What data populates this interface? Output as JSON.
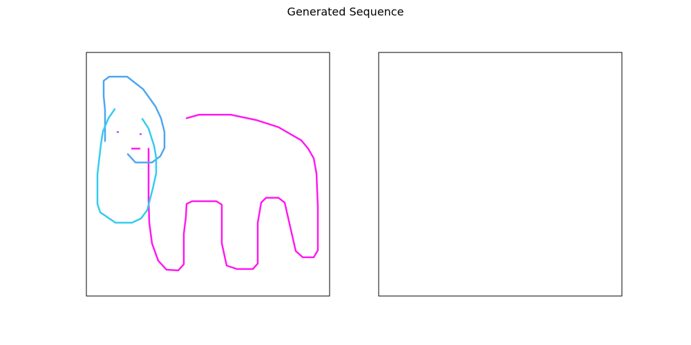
{
  "title": "Generated Sequence",
  "chart_data": [
    {
      "type": "line",
      "xlim": [
        0,
        352
      ],
      "ylim": [
        0,
        352
      ],
      "series": [
        {
          "color": "#ff19f0",
          "x": [
            145,
            163,
            209,
            247,
            278,
            311,
            321,
            329,
            333,
            335,
            335,
            329,
            313,
            303,
            287,
            278,
            260,
            253,
            248,
            248,
            241,
            218,
            203,
            196,
            196,
            188,
            153,
            145,
            144,
            141,
            141,
            133,
            116,
            104,
            95,
            91,
            90,
            90
          ],
          "values": [
            257,
            262,
            262,
            254,
            244,
            225,
            213,
            199,
            177,
            129,
            66,
            56,
            56,
            65,
            135,
            142,
            142,
            135,
            106,
            47,
            39,
            39,
            44,
            76,
            132,
            137,
            137,
            133,
            114,
            90,
            46,
            37,
            38,
            51,
            76,
            106,
            140,
            213
          ]
        },
        {
          "color": "#ff19f0",
          "x": [
            66,
            77
          ],
          "values": [
            213,
            213
          ]
        },
        {
          "color": "#b44cff",
          "x": [
            45,
            46
          ],
          "values": [
            237,
            237
          ]
        },
        {
          "color": "#b44cff",
          "x": [
            78,
            79
          ],
          "values": [
            234,
            234
          ]
        },
        {
          "color": "#4da6f0",
          "x": [
            27,
            27,
            25,
            25,
            33,
            59,
            82,
            100,
            108,
            113,
            113,
            107,
            95,
            71,
            60
          ],
          "values": [
            224,
            269,
            289,
            311,
            317,
            317,
            299,
            274,
            257,
            237,
            214,
            202,
            193,
            193,
            205
          ]
        },
        {
          "color": "#33ccee",
          "x": [
            41,
            32,
            24,
            21,
            16,
            16,
            20,
            42,
            66,
            79,
            88,
            96,
            101,
            101,
            98,
            90,
            81
          ],
          "values": [
            270,
            257,
            238,
            219,
            176,
            133,
            121,
            106,
            106,
            112,
            124,
            155,
            177,
            200,
            217,
            242,
            256
          ]
        }
      ]
    },
    {
      "type": "line",
      "xlim": [
        0,
        352
      ],
      "ylim": [
        0,
        352
      ],
      "series": []
    }
  ]
}
